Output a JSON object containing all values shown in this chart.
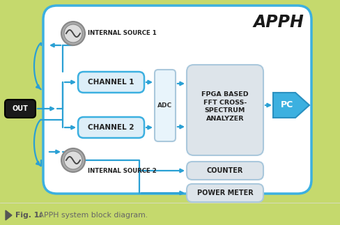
{
  "bg_color": "#c5d96d",
  "main_box_bg": "#ffffff",
  "main_box_edge": "#3cb0e0",
  "title": "APPH",
  "arrow_color": "#2aa0d4",
  "channel_box_fill": "#ddeef8",
  "channel_box_edge": "#3cb0e0",
  "adc_box_fill": "#e8f4fb",
  "adc_box_edge": "#aac8dc",
  "fpga_box_fill": "#dde4ea",
  "fpga_box_edge": "#aac8dc",
  "counter_box_fill": "#dde4ea",
  "counter_box_edge": "#aac8dc",
  "power_box_fill": "#dde4ea",
  "power_box_edge": "#aac8dc",
  "pc_box_fill": "#3cb0e0",
  "pc_box_edge": "#2a90c0",
  "out_box_fill": "#1a1a1a",
  "out_box_edge": "#000000",
  "source_circle_fill": "#aaaaaa",
  "source_circle_edge": "#888888",
  "source_inner_fill": "#cccccc",
  "caption_bold": "Fig. 1:",
  "caption_normal": " APPH system block diagram.",
  "caption_color_bold": "#555555",
  "caption_color_normal": "#666666"
}
